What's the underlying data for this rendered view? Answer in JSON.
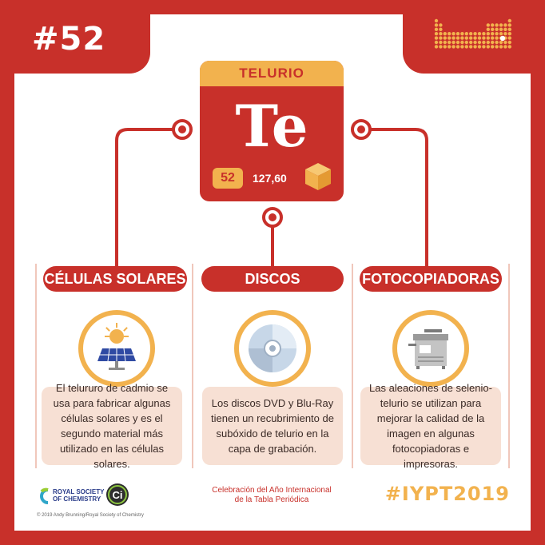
{
  "issue_number": "#52",
  "element": {
    "name": "TELURIO",
    "symbol": "Te",
    "atomic_number": "52",
    "atomic_mass": "127,60"
  },
  "uses": [
    {
      "title": "CÉLULAS SOLARES",
      "icon": "solar-panel-icon",
      "description": "El telururo de cadmio se usa para fabricar algunas células solares y es el segundo material más utilizado en las células solares."
    },
    {
      "title": "DISCOS",
      "icon": "disc-icon",
      "description": "Los discos DVD y Blu-Ray tienen un recubrimiento de subóxido de telurio en la capa de grabación."
    },
    {
      "title": "FOTOCOPIADORAS",
      "icon": "photocopier-icon",
      "description": "Las aleaciones de selenio-telurio se utilizan para mejorar la calidad de la imagen en algunas fotocopiadoras e impresoras."
    }
  ],
  "footer": {
    "rsc_line1": "ROYAL SOCIETY",
    "rsc_line2": "OF CHEMISTRY",
    "copyright": "© 2019 Andy Brunning/Royal Society of Chemistry",
    "celebration_line1": "Celebración del Año Internacional",
    "celebration_line2": "de la Tabla Periódica",
    "hashtag": "#IYPT2019"
  },
  "colors": {
    "primary_red": "#c8302a",
    "accent_orange": "#f2b24e",
    "light_pink": "#f7e0d4"
  }
}
